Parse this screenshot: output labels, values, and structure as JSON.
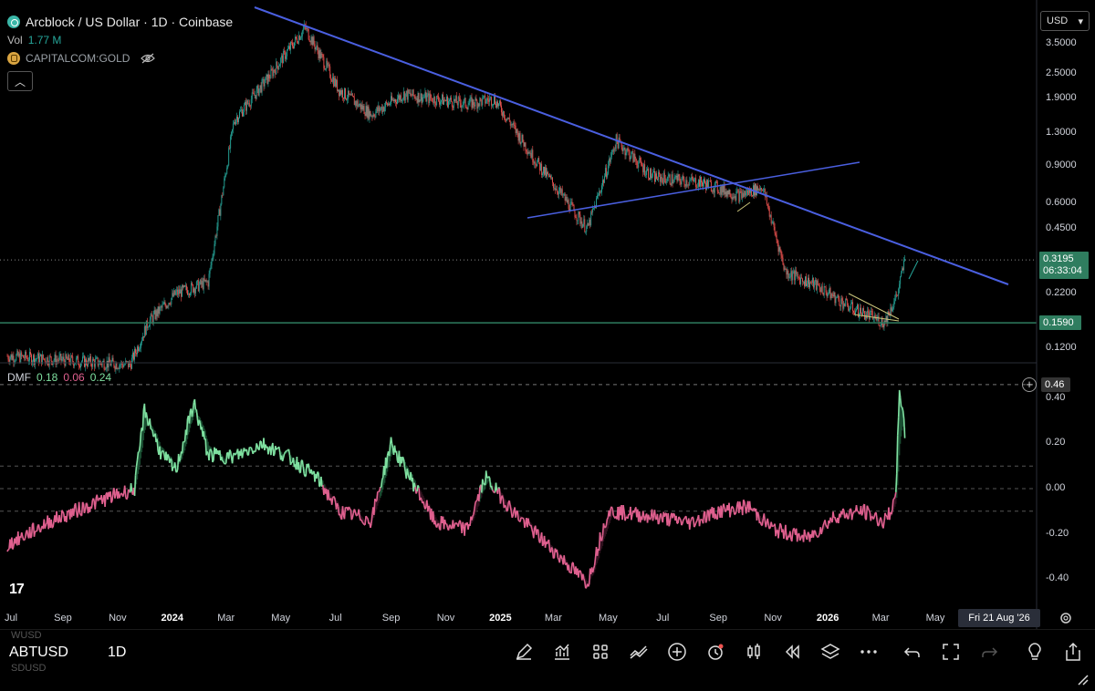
{
  "legend": {
    "title": "Arcblock / US Dollar · 1D · Coinbase",
    "vol_label": "Vol",
    "vol_value": "1.77 M",
    "compare_symbol": "CAPITALCOM:GOLD"
  },
  "currency": "USD",
  "price_axis": {
    "ticks": [
      "3.5000",
      "2.5000",
      "1.9000",
      "1.3000",
      "0.9000",
      "0.6000",
      "0.4500",
      "0.2200",
      "0.1200"
    ],
    "last_price": "0.3195",
    "countdown": "06:33:04",
    "support_price": "0.1590"
  },
  "dmf": {
    "name": "DMF",
    "v1": "0.18",
    "v2": "0.06",
    "v3": "0.24",
    "ticks": [
      "0.40",
      "0.20",
      "0.00",
      "-0.20",
      "-0.40"
    ],
    "max_label": "0.46"
  },
  "time_axis": {
    "labels": [
      "Jul",
      "Sep",
      "Nov",
      "2024",
      "Mar",
      "May",
      "Jul",
      "Sep",
      "Nov",
      "2025",
      "Mar",
      "May",
      "Jul",
      "Sep",
      "Nov",
      "2026",
      "Mar",
      "May"
    ],
    "bold": [
      "2024",
      "2025",
      "2026"
    ],
    "hover_date": "Fri 21 Aug '26"
  },
  "toolbar": {
    "symbol": "ABTUSD",
    "interval": "1D",
    "ghost_above": "WUSD",
    "ghost_below": "SDUSD"
  },
  "colors": {
    "up": "#26a69a",
    "down": "#ef5350",
    "trendline": "#4a5fe0",
    "support": "#2f7d5f",
    "dmf_pos": "#7fe0a0",
    "dmf_neg": "#e0608f"
  },
  "chart_data": {
    "type": "line",
    "title": "Arcblock / US Dollar · 1D · Coinbase",
    "scale": "log",
    "y_range": [
      0.1,
      5
    ],
    "price_anchors": {
      "x": [
        "2023-07-01",
        "2023-11-15",
        "2023-12-05",
        "2024-01-05",
        "2024-02-10",
        "2024-03-10",
        "2024-04-20",
        "2024-05-28",
        "2024-07-05",
        "2024-08-10",
        "2024-09-15",
        "2024-11-25",
        "2024-12-25",
        "2025-02-10",
        "2025-04-08",
        "2025-05-10",
        "2025-06-20",
        "2025-08-15",
        "2025-09-25",
        "2025-10-20",
        "2025-11-15",
        "2025-12-20",
        "2026-01-25",
        "2026-03-05",
        "2026-03-20",
        "2026-03-28"
      ],
      "close": [
        0.11,
        0.1,
        0.16,
        0.22,
        0.25,
        1.5,
        2.5,
        4.2,
        2.1,
        1.6,
        2.0,
        1.8,
        1.9,
        0.95,
        0.45,
        1.2,
        0.8,
        0.75,
        0.65,
        0.72,
        0.28,
        0.24,
        0.19,
        0.16,
        0.22,
        0.3195
      ]
    },
    "dmf_anchors": {
      "x": [
        "2023-07-01",
        "2023-08-15",
        "2023-10-15",
        "2023-11-20",
        "2023-12-01",
        "2023-12-20",
        "2024-01-05",
        "2024-01-25",
        "2024-02-10",
        "2024-03-10",
        "2024-04-10",
        "2024-05-10",
        "2024-06-10",
        "2024-07-05",
        "2024-08-10",
        "2024-09-01",
        "2024-10-20",
        "2024-11-25",
        "2024-12-15",
        "2025-01-15",
        "2025-02-15",
        "2025-04-08",
        "2025-05-01",
        "2025-06-15",
        "2025-08-01",
        "2025-09-01",
        "2025-10-05",
        "2025-11-01",
        "2025-12-10",
        "2026-01-10",
        "2026-02-10",
        "2026-03-05",
        "2026-03-18",
        "2026-03-22",
        "2026-03-28"
      ],
      "value": [
        -0.25,
        -0.15,
        -0.05,
        0.0,
        0.35,
        0.15,
        0.08,
        0.38,
        0.15,
        0.14,
        0.2,
        0.14,
        0.05,
        -0.1,
        -0.14,
        0.2,
        -0.15,
        -0.18,
        0.05,
        -0.1,
        -0.22,
        -0.42,
        -0.1,
        -0.12,
        -0.15,
        -0.1,
        -0.08,
        -0.18,
        -0.22,
        -0.12,
        -0.1,
        -0.15,
        -0.05,
        0.46,
        0.24
      ]
    },
    "horizontal_levels": [
      0.319,
      0.159
    ],
    "dmf_levels": [
      0.46,
      0.1,
      0.0,
      -0.1
    ]
  }
}
